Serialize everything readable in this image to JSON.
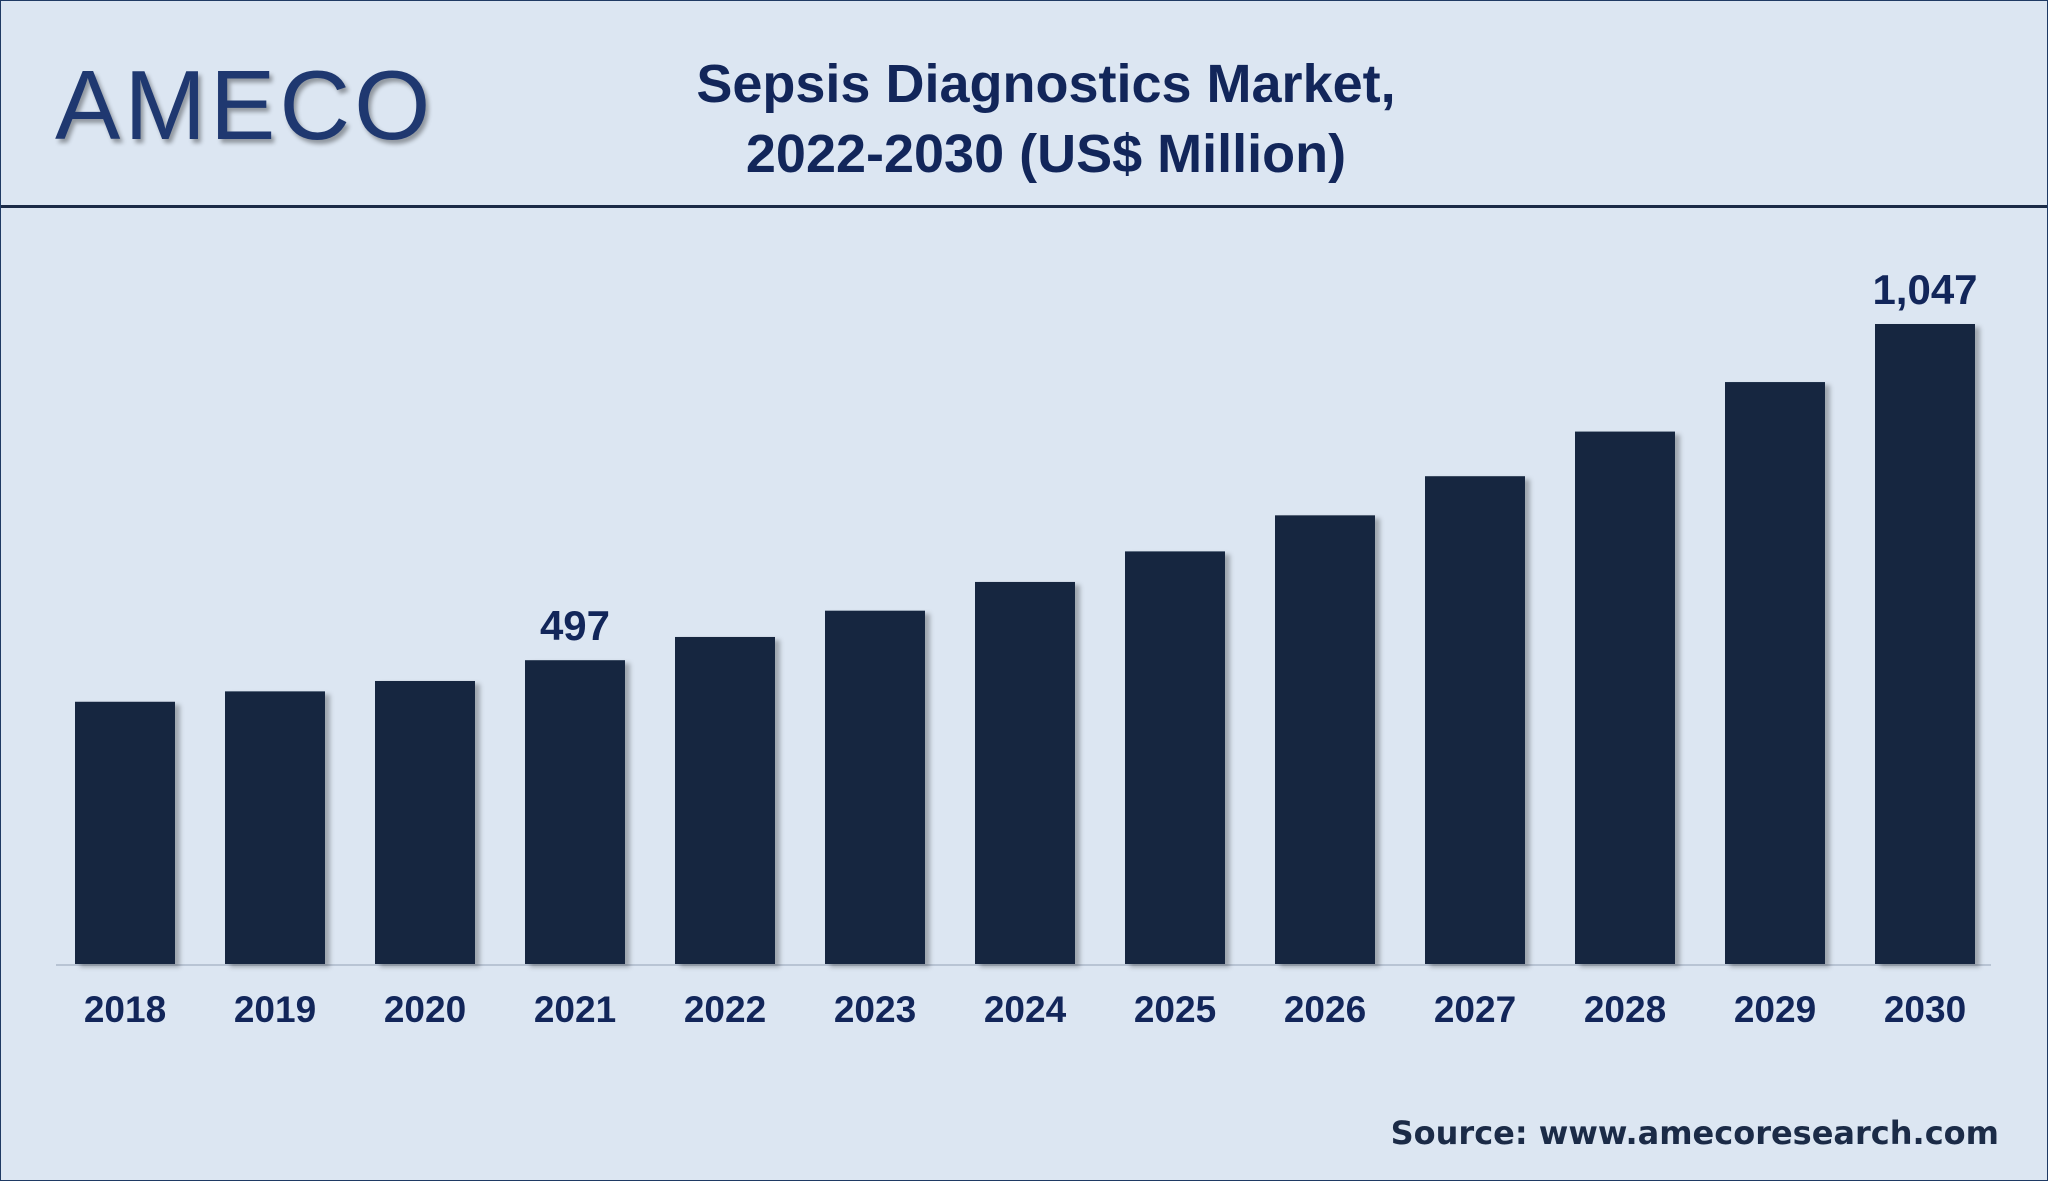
{
  "logo": "AMECO",
  "title_line1": "Sepsis Diagnostics Market,",
  "title_line2": "2022-2030 (US$ Million)",
  "source": "Source: www.amecoresearch.com",
  "colors": {
    "background": "#dce6f2",
    "bar": "#13263f",
    "text": "#12265a"
  },
  "chart_data": {
    "type": "bar",
    "title": "Sepsis Diagnostics Market, 2022-2030 (US$ Million)",
    "categories": [
      "2018",
      "2019",
      "2020",
      "2021",
      "2022",
      "2023",
      "2024",
      "2025",
      "2026",
      "2027",
      "2028",
      "2029",
      "2030"
    ],
    "values": [
      429,
      446,
      463,
      497,
      535,
      578,
      625,
      675,
      734,
      798,
      871,
      952,
      1047
    ],
    "data_labels": [
      {
        "category": "2021",
        "text": "497"
      },
      {
        "category": "2030",
        "text": "1,047"
      }
    ],
    "xlabel": "",
    "ylabel": "",
    "ylim": [
      0,
      1100
    ],
    "grid": false,
    "legend": "none"
  }
}
